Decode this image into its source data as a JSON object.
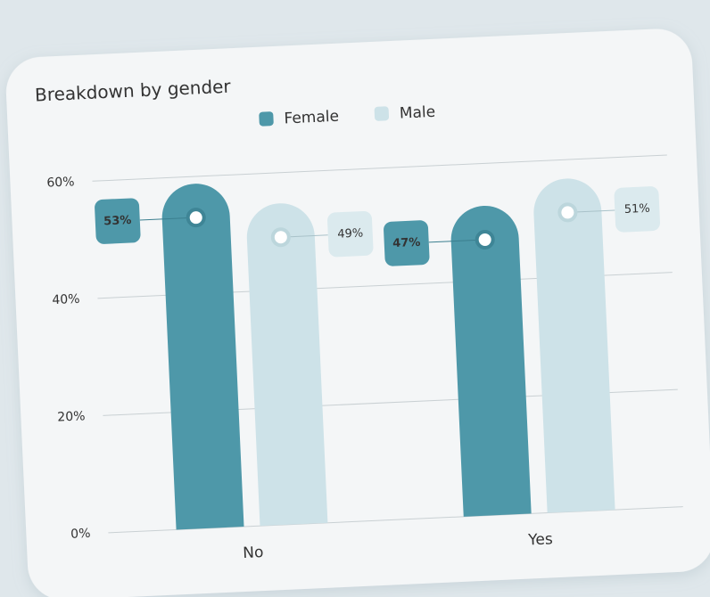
{
  "chart_data": {
    "type": "bar",
    "title": "Breakdown by gender",
    "categories": [
      "No",
      "Yes"
    ],
    "series": [
      {
        "name": "Female",
        "color": "#4e98a9",
        "values": [
          53,
          47
        ],
        "value_labels": [
          "53%",
          "47%"
        ]
      },
      {
        "name": "Male",
        "color": "#cde2e8",
        "values": [
          49,
          51
        ],
        "value_labels": [
          "49%",
          "51%"
        ]
      }
    ],
    "ylim": [
      0,
      60
    ],
    "yticks": [
      {
        "value": 0,
        "label": "0%"
      },
      {
        "value": 20,
        "label": "20%"
      },
      {
        "value": 40,
        "label": "40%"
      },
      {
        "value": 60,
        "label": "60%"
      }
    ],
    "grid": true,
    "legend": "top"
  }
}
